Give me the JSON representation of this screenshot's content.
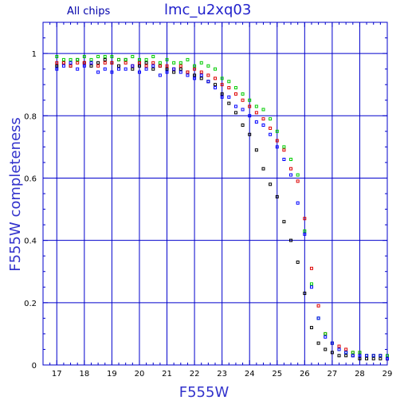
{
  "chart_data": {
    "type": "scatter",
    "title": "lmc_u2xq03",
    "subtitle": "All chips",
    "xlabel": "F555W",
    "ylabel": "F555W completeness",
    "xlim": [
      16.5,
      29
    ],
    "ylim": [
      0,
      1.1
    ],
    "xticks": [
      "17",
      "18",
      "19",
      "20",
      "21",
      "22",
      "23",
      "24",
      "25",
      "26",
      "27",
      "28",
      "29"
    ],
    "yticks": [
      "0",
      "0.2",
      "0.4",
      "0.6",
      "0.8",
      "1"
    ],
    "grid": true,
    "marker": "open-square",
    "series": [
      {
        "color": "#000000",
        "x": [
          17,
          17.25,
          17.5,
          17.75,
          18,
          18.25,
          18.5,
          18.75,
          19,
          19.25,
          19.5,
          19.75,
          20,
          20.25,
          20.5,
          20.75,
          21,
          21.25,
          21.5,
          21.75,
          22,
          22.25,
          22.5,
          22.75,
          23,
          23.25,
          23.5,
          23.75,
          24,
          24.25,
          24.5,
          24.75,
          25,
          25.25,
          25.5,
          25.75,
          26,
          26.25,
          26.5,
          26.75,
          27,
          27.25,
          27.5,
          27.75,
          28,
          28.25,
          28.5,
          28.75,
          29
        ],
        "y": [
          0.96,
          0.97,
          0.96,
          0.98,
          0.97,
          0.96,
          0.97,
          0.98,
          0.97,
          0.96,
          0.98,
          0.95,
          0.96,
          0.97,
          0.95,
          0.96,
          0.95,
          0.94,
          0.95,
          0.94,
          0.93,
          0.92,
          0.91,
          0.9,
          0.87,
          0.84,
          0.81,
          0.77,
          0.74,
          0.69,
          0.63,
          0.58,
          0.54,
          0.46,
          0.4,
          0.33,
          0.23,
          0.12,
          0.07,
          0.05,
          0.04,
          0.03,
          0.03,
          0.03,
          0.02,
          0.02,
          0.02,
          0.02,
          0.02
        ]
      },
      {
        "color": "#dd0000",
        "x": [
          17,
          17.25,
          17.5,
          17.75,
          18,
          18.25,
          18.5,
          18.75,
          19,
          19.25,
          19.5,
          19.75,
          20,
          20.25,
          20.5,
          20.75,
          21,
          21.25,
          21.5,
          21.75,
          22,
          22.25,
          22.5,
          22.75,
          23,
          23.25,
          23.5,
          23.75,
          24,
          24.25,
          24.5,
          24.75,
          25,
          25.25,
          25.5,
          25.75,
          26,
          26.25,
          26.5,
          26.75,
          27,
          27.25,
          27.5,
          27.75,
          28,
          28.25,
          28.5,
          28.75,
          29
        ],
        "y": [
          0.97,
          0.97,
          0.96,
          0.97,
          0.97,
          0.97,
          0.96,
          0.97,
          0.97,
          0.98,
          0.97,
          0.96,
          0.97,
          0.96,
          0.97,
          0.96,
          0.96,
          0.95,
          0.96,
          0.94,
          0.95,
          0.94,
          0.93,
          0.92,
          0.9,
          0.89,
          0.87,
          0.85,
          0.83,
          0.81,
          0.79,
          0.76,
          0.72,
          0.69,
          0.63,
          0.59,
          0.47,
          0.31,
          0.19,
          0.1,
          0.07,
          0.06,
          0.05,
          0.04,
          0.04,
          0.03,
          0.03,
          0.03,
          0.02
        ]
      },
      {
        "color": "#00cc00",
        "x": [
          17,
          17.25,
          17.5,
          17.75,
          18,
          18.25,
          18.5,
          18.75,
          19,
          19.25,
          19.5,
          19.75,
          20,
          20.25,
          20.5,
          20.75,
          21,
          21.25,
          21.5,
          21.75,
          22,
          22.25,
          22.5,
          22.75,
          23,
          23.25,
          23.5,
          23.75,
          24,
          24.25,
          24.5,
          24.75,
          25,
          25.25,
          25.5,
          25.75,
          26,
          26.25,
          26.5,
          26.75,
          27,
          27.25,
          27.5,
          27.75,
          28,
          28.25,
          28.5,
          28.75,
          29
        ],
        "y": [
          0.99,
          0.98,
          0.98,
          0.98,
          0.99,
          0.98,
          0.99,
          0.99,
          0.99,
          0.98,
          0.98,
          0.99,
          0.98,
          0.98,
          0.99,
          0.97,
          0.98,
          0.97,
          0.97,
          0.98,
          0.96,
          0.97,
          0.96,
          0.95,
          0.92,
          0.91,
          0.89,
          0.87,
          0.85,
          0.83,
          0.82,
          0.79,
          0.75,
          0.7,
          0.66,
          0.61,
          0.43,
          0.26,
          0.15,
          0.1,
          0.07,
          0.05,
          0.04,
          0.04,
          0.04,
          0.03,
          0.03,
          0.03,
          0.03
        ]
      },
      {
        "color": "#0000ff",
        "x": [
          17,
          17.25,
          17.5,
          17.75,
          18,
          18.25,
          18.5,
          18.75,
          19,
          19.25,
          19.5,
          19.75,
          20,
          20.25,
          20.5,
          20.75,
          21,
          21.25,
          21.5,
          21.75,
          22,
          22.25,
          22.5,
          22.75,
          23,
          23.25,
          23.5,
          23.75,
          24,
          24.25,
          24.5,
          24.75,
          25,
          25.25,
          25.5,
          25.75,
          26,
          26.25,
          26.5,
          26.75,
          27,
          27.25,
          27.5,
          27.75,
          28,
          28.25,
          28.5,
          28.75,
          29
        ],
        "y": [
          0.95,
          0.96,
          0.97,
          0.95,
          0.96,
          0.97,
          0.94,
          0.95,
          0.94,
          0.95,
          0.95,
          0.96,
          0.94,
          0.95,
          0.96,
          0.93,
          0.94,
          0.95,
          0.94,
          0.93,
          0.92,
          0.93,
          0.91,
          0.89,
          0.86,
          0.86,
          0.83,
          0.82,
          0.8,
          0.78,
          0.77,
          0.74,
          0.7,
          0.66,
          0.61,
          0.52,
          0.42,
          0.25,
          0.15,
          0.09,
          0.07,
          0.05,
          0.04,
          0.03,
          0.03,
          0.03,
          0.03,
          0.03,
          0.02
        ]
      }
    ]
  }
}
